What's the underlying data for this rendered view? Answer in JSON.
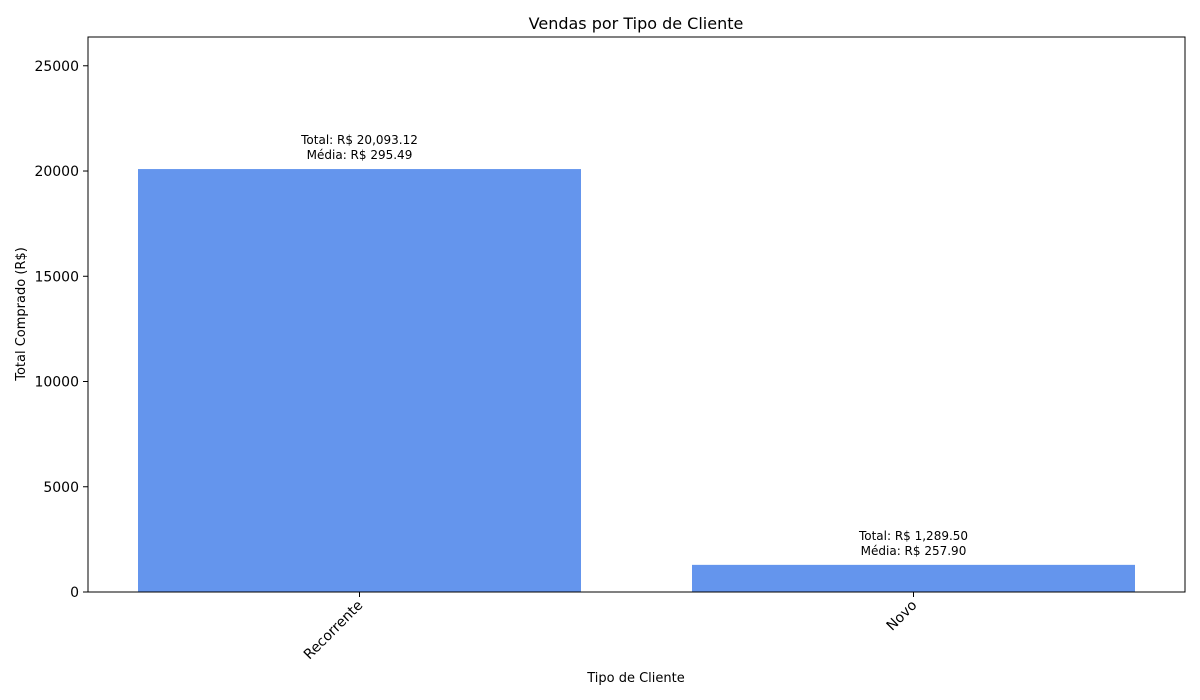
{
  "chart_data": {
    "type": "bar",
    "title": "Vendas por Tipo de Cliente",
    "xlabel": "Tipo de Cliente",
    "ylabel": "Total Comprado (R$)",
    "categories": [
      "Recorrente",
      "Novo"
    ],
    "values": [
      20093.12,
      1289.5
    ],
    "annotations": [
      [
        "Total: R$ 20,093.12",
        "Média: R$ 295.49"
      ],
      [
        "Total: R$ 1,289.50",
        "Média: R$ 257.90"
      ]
    ],
    "ylim": [
      0,
      26367
    ],
    "yticks": [
      0,
      5000,
      10000,
      15000,
      20000,
      25000
    ],
    "ytick_labels": [
      "0",
      "5000",
      "10000",
      "15000",
      "20000",
      "25000"
    ],
    "bar_color": "#6495ED",
    "grid": false,
    "legend": "none"
  }
}
